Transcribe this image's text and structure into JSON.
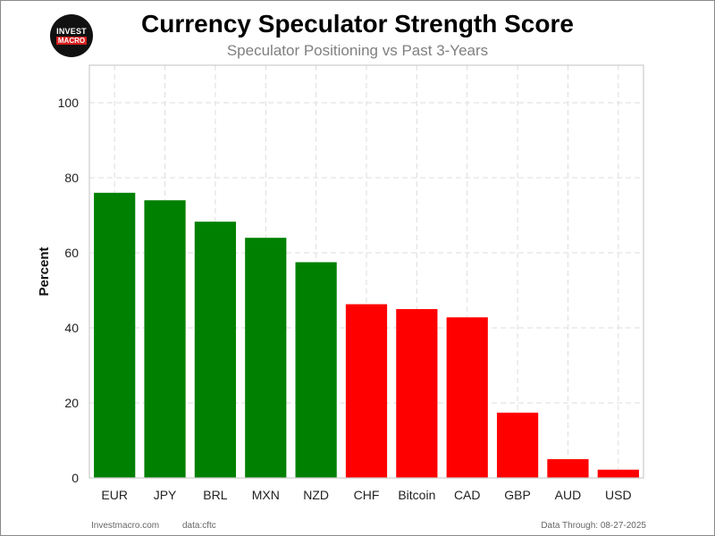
{
  "logo": {
    "top": "INVEST",
    "bottom": "MACRO"
  },
  "footer": {
    "site": "Investmacro.com",
    "source": "data:cftc",
    "through": "Data Through: 08-27-2025"
  },
  "chart_data": {
    "type": "bar",
    "title": "Currency Speculator Strength Score",
    "subtitle": "Speculator Positioning vs Past 3-Years",
    "xlabel": "",
    "ylabel": "Percent",
    "ylim": [
      0,
      110
    ],
    "yticks": [
      0,
      20,
      40,
      60,
      80,
      100
    ],
    "grid": true,
    "categories": [
      "EUR",
      "JPY",
      "BRL",
      "MXN",
      "NZD",
      "CHF",
      "Bitcoin",
      "CAD",
      "GBP",
      "AUD",
      "USD"
    ],
    "values": [
      76,
      74,
      68.3,
      64,
      57.5,
      46.3,
      45,
      42.8,
      17.4,
      5,
      2.2
    ],
    "colors": [
      "#008000",
      "#008000",
      "#008000",
      "#008000",
      "#008000",
      "#ff0000",
      "#ff0000",
      "#ff0000",
      "#ff0000",
      "#ff0000",
      "#ff0000"
    ]
  }
}
